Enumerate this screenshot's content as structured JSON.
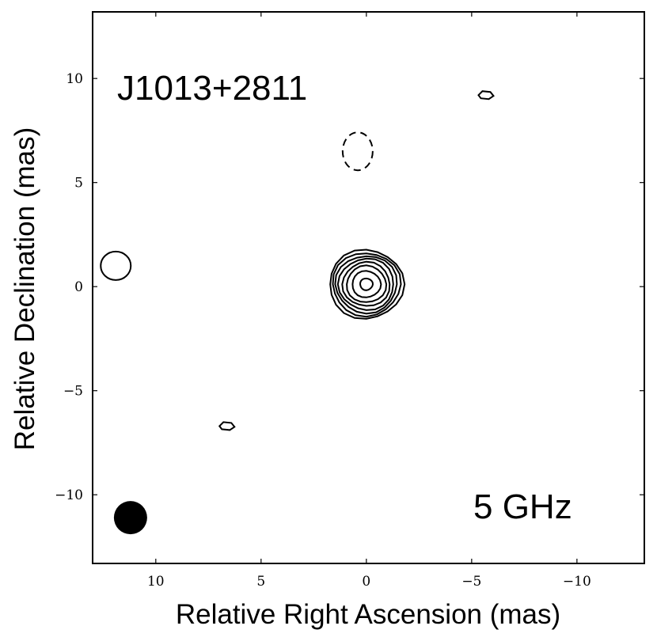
{
  "chart_data": {
    "type": "contour",
    "source_label": "J1013+2811",
    "frequency_label": "5 GHz",
    "xlabel": "Relative Right Ascension (mas)",
    "ylabel": "Relative Declination (mas)",
    "xlim": [
      13,
      -13.2
    ],
    "ylim": [
      -13.3,
      13.2
    ],
    "x_ticks": [
      10,
      5,
      0,
      -5,
      -10
    ],
    "y_ticks": [
      10,
      5,
      0,
      -5,
      -10
    ],
    "x_tick_labels": [
      "10",
      "5",
      "0",
      "−5",
      "−10"
    ],
    "y_tick_labels": [
      "10",
      "5",
      "0",
      "−5",
      "−10"
    ],
    "core": {
      "x": 0,
      "y": 0,
      "levels": 8
    },
    "beam": {
      "x": 11.2,
      "y": -11.1
    },
    "features": [
      {
        "name": "positive",
        "x": 11.9,
        "y": 1.0
      },
      {
        "name": "positive",
        "x": -5.7,
        "y": 9.2
      },
      {
        "name": "positive",
        "x": 6.6,
        "y": -6.7
      },
      {
        "name": "negative",
        "x": 0.3,
        "y": 6.5
      }
    ]
  }
}
